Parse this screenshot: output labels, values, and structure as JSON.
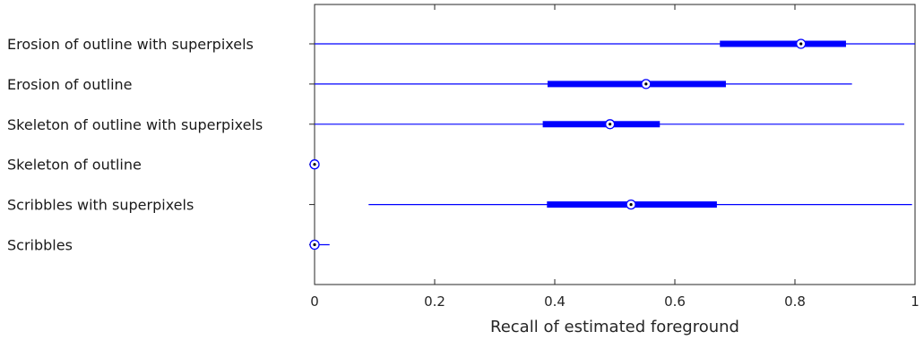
{
  "chart_data": {
    "type": "boxplot",
    "orientation": "horizontal",
    "xlabel": "Recall of estimated foreground",
    "xlim": [
      0,
      1
    ],
    "xticks": [
      0,
      0.2,
      0.4,
      0.6,
      0.8,
      1
    ],
    "xtick_labels": [
      "0",
      "0.2",
      "0.4",
      "0.6",
      "0.8",
      "1"
    ],
    "grid": false,
    "color": "#0000ff",
    "categories": [
      "Erosion of outline with superpixels",
      "Erosion of outline",
      "Skeleton of outline with superpixels",
      "Skeleton of outline",
      "Scribbles with superpixels",
      "Scribbles"
    ],
    "series": [
      {
        "min": 0.0,
        "q1": 0.675,
        "median": 0.81,
        "q3": 0.885,
        "max": 1.0
      },
      {
        "min": 0.0,
        "q1": 0.388,
        "median": 0.552,
        "q3": 0.685,
        "max": 0.895
      },
      {
        "min": 0.0,
        "q1": 0.38,
        "median": 0.492,
        "q3": 0.575,
        "max": 0.982
      },
      {
        "min": 0.0,
        "q1": 0.0,
        "median": 0.0,
        "q3": 0.0,
        "max": 0.0
      },
      {
        "min": 0.09,
        "q1": 0.387,
        "median": 0.527,
        "q3": 0.67,
        "max": 0.995
      },
      {
        "min": 0.0,
        "q1": 0.0,
        "median": 0.0,
        "q3": 0.0,
        "max": 0.025
      }
    ]
  }
}
